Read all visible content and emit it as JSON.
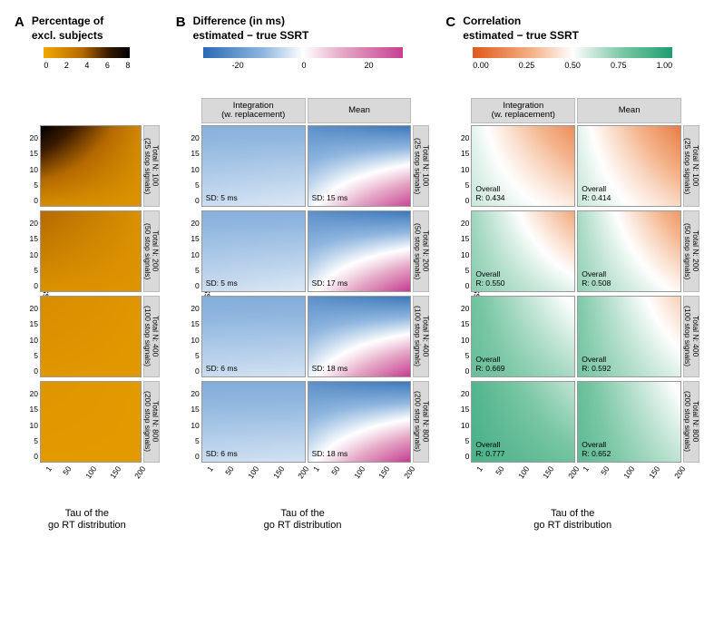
{
  "panels": {
    "A": {
      "letter": "A",
      "title": "Percentage of\nexcl. subjects"
    },
    "B": {
      "letter": "B",
      "title": "Difference (in ms)\nestimated − true SSRT"
    },
    "C": {
      "letter": "C",
      "title": "Correlation\nestimated − true SSRT"
    }
  },
  "colorbars": {
    "A": {
      "ticks": [
        "0",
        "2",
        "4",
        "6",
        "8"
      ],
      "stops": [
        [
          0,
          "#f2a900"
        ],
        [
          0.45,
          "#b56a00"
        ],
        [
          0.75,
          "#3a1b00"
        ],
        [
          1,
          "#000000"
        ]
      ]
    },
    "B": {
      "ticks": [
        "",
        "-20",
        "",
        "0",
        "",
        "20",
        ""
      ],
      "stops": [
        [
          0,
          "#2b6bb3"
        ],
        [
          0.3,
          "#8fb6df"
        ],
        [
          0.5,
          "#ffffff"
        ],
        [
          0.7,
          "#e5a8c6"
        ],
        [
          1,
          "#c83f92"
        ]
      ]
    },
    "C": {
      "ticks": [
        "0.00",
        "0.25",
        "0.50",
        "0.75",
        "1.00"
      ],
      "stops": [
        [
          0,
          "#e15a1a"
        ],
        [
          0.3,
          "#f4b38a"
        ],
        [
          0.5,
          "#ffffff"
        ],
        [
          0.75,
          "#7bc7a5"
        ],
        [
          1,
          "#1f9e70"
        ]
      ]
    }
  },
  "y_ticks": [
    "0",
    "5",
    "10",
    "15",
    "20",
    ""
  ],
  "x_ticks": [
    "1",
    "50",
    "100",
    "150",
    "200"
  ],
  "x_title": "Tau of the\ngo RT distribution",
  "y_title": "Go omission (%)",
  "row_strips": [
    "Total N: 100\n(25 stop signals)",
    "Total N: 200\n(50 stop signals)",
    "Total N: 400\n(100 stop signals)",
    "Total N: 800\n(200 stop signals)"
  ],
  "col_headers_BC": [
    "Integration\n(w. replacement)",
    "Mean"
  ],
  "cellsA": [
    {
      "tl": 9.0,
      "tr": 2.2,
      "bl": 1.8,
      "br": 1.4
    },
    {
      "tl": 4.0,
      "tr": 1.6,
      "bl": 1.5,
      "br": 1.3
    },
    {
      "tl": 1.8,
      "tr": 1.2,
      "bl": 1.2,
      "br": 1.1
    },
    {
      "tl": 1.3,
      "tr": 1.0,
      "bl": 1.0,
      "br": 1.0
    }
  ],
  "cellsB": [
    [
      {
        "tl": -14,
        "tr": -14,
        "bl": -6,
        "br": -4,
        "annot": "SD:  5 ms"
      },
      {
        "tl": -22,
        "tr": -28,
        "bl": -2,
        "br": 30,
        "annot": "SD:  15 ms"
      }
    ],
    [
      {
        "tl": -14,
        "tr": -14,
        "bl": -6,
        "br": -4,
        "annot": "SD:  5 ms"
      },
      {
        "tl": -22,
        "tr": -28,
        "bl": -2,
        "br": 32,
        "annot": "SD:  17 ms"
      }
    ],
    [
      {
        "tl": -15,
        "tr": -15,
        "bl": -6,
        "br": -5,
        "annot": "SD:  6 ms"
      },
      {
        "tl": -22,
        "tr": -28,
        "bl": -2,
        "br": 32,
        "annot": "SD:  18 ms"
      }
    ],
    [
      {
        "tl": -15,
        "tr": -15,
        "bl": -6,
        "br": -5,
        "annot": "SD:  6 ms"
      },
      {
        "tl": -22,
        "tr": -28,
        "bl": -2,
        "br": 32,
        "annot": "SD:  18 ms"
      }
    ]
  ],
  "cellsC": [
    [
      {
        "tl": 0.55,
        "tr": 0.18,
        "bl": 0.6,
        "br": 0.45,
        "annot": "Overall\nR:  0.434"
      },
      {
        "tl": 0.55,
        "tr": 0.12,
        "bl": 0.6,
        "br": 0.4,
        "annot": "Overall\nR:  0.414"
      }
    ],
    [
      {
        "tl": 0.68,
        "tr": 0.28,
        "bl": 0.72,
        "br": 0.55,
        "annot": "Overall\nR:  0.550"
      },
      {
        "tl": 0.66,
        "tr": 0.22,
        "bl": 0.7,
        "br": 0.48,
        "annot": "Overall\nR:  0.508"
      }
    ],
    [
      {
        "tl": 0.78,
        "tr": 0.48,
        "bl": 0.8,
        "br": 0.66,
        "annot": "Overall\nR:  0.669"
      },
      {
        "tl": 0.74,
        "tr": 0.38,
        "bl": 0.76,
        "br": 0.56,
        "annot": "Overall\nR:  0.592"
      }
    ],
    [
      {
        "tl": 0.86,
        "tr": 0.62,
        "bl": 0.88,
        "br": 0.78,
        "annot": "Overall\nR:  0.777"
      },
      {
        "tl": 0.8,
        "tr": 0.48,
        "bl": 0.82,
        "br": 0.62,
        "annot": "Overall\nR:  0.652"
      }
    ]
  ],
  "ranges": {
    "A": [
      0,
      9
    ],
    "B": [
      -32,
      32
    ],
    "C": [
      0,
      1
    ]
  }
}
